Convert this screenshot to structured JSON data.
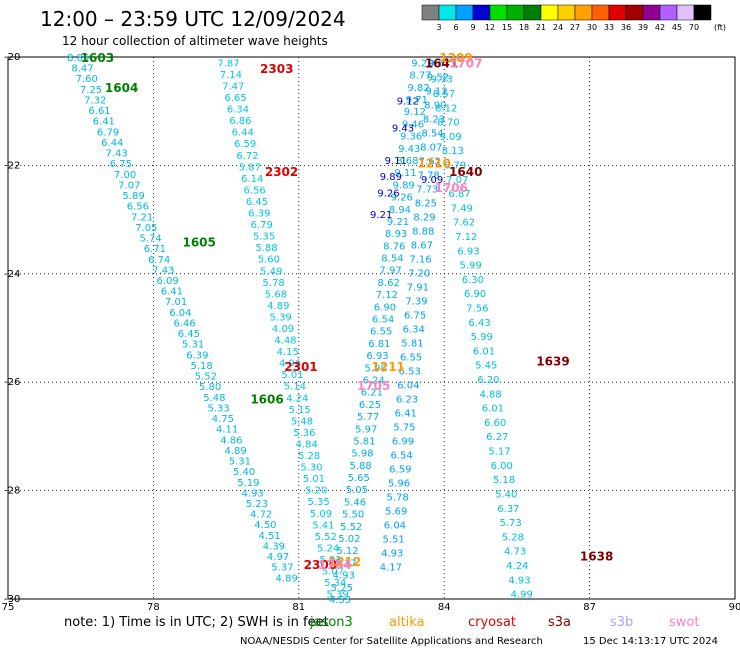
{
  "header": {
    "title": "12:00 – 23:59 UTC 12/09/2024",
    "subtitle": "12 hour collection of altimeter wave heights"
  },
  "legend": {
    "ticks": [
      "3",
      "6",
      "9",
      "12",
      "15",
      "18",
      "21",
      "24",
      "27",
      "30",
      "33",
      "36",
      "39",
      "42",
      "45",
      "70"
    ],
    "unit": "(ft)",
    "colors": [
      "#808080",
      "#00e8e8",
      "#00a0ff",
      "#0000d0",
      "#00e000",
      "#00b000",
      "#008000",
      "#ffff00",
      "#ffd000",
      "#ffa000",
      "#ff6000",
      "#e00000",
      "#a00000",
      "#900090",
      "#b060ff",
      "#e0c0ff",
      "#000000"
    ]
  },
  "footer": {
    "note": "note:  1) Time is in UTC; 2) SWH is in feet",
    "credit": "NOAA/NESDIS Center for Satellite Applications and Research",
    "timestamp": "15 Dec 14:13:17 UTC 2024",
    "satellites": [
      {
        "name": "jason3",
        "color": "#008000"
      },
      {
        "name": "altika",
        "color": "#ff9900"
      },
      {
        "name": "cryosat",
        "color": "#e00000"
      },
      {
        "name": "s3a",
        "color": "#800000"
      },
      {
        "name": "s3b",
        "color": "#b0a0ff"
      },
      {
        "name": "swot",
        "color": "#ff80c0"
      }
    ]
  },
  "chart_data": {
    "type": "scatter",
    "title": "12:00 – 23:59 UTC 12/09/2024",
    "subtitle": "12 hour collection of altimeter wave heights",
    "xlabel": "",
    "ylabel": "",
    "xlim": [
      75,
      90
    ],
    "ylim": [
      -30,
      -20
    ],
    "xticks": [
      "75",
      "78",
      "81",
      "84",
      "87",
      "90"
    ],
    "yticks": [
      "-20",
      "-22",
      "-24",
      "-26",
      "-28",
      "-30"
    ],
    "grid": true,
    "tracks": [
      {
        "x0": 76.45,
        "y0": -20.0,
        "x1": 80.75,
        "y1": -29.6,
        "color": "#00b8e8",
        "values": [
          "8.85",
          "8.47",
          "7.60",
          "7.25",
          "7.32",
          "6.61",
          "6.41",
          "6.79",
          "6.44",
          "7.43",
          "6.75",
          "7.00",
          "7.07",
          "5.89",
          "6.56",
          "7.21",
          "7.05",
          "5.74",
          "6.71",
          "6.74",
          "7.43",
          "6.09",
          "6.41",
          "7.01",
          "6.04",
          "6.46",
          "6.45",
          "5.31",
          "6.39",
          "5.18",
          "5.52",
          "5.80",
          "5.48",
          "5.33",
          "4.75",
          "4.11",
          "4.86",
          "4.89",
          "5.31",
          "5.40",
          "5.19",
          "4.93",
          "5.23",
          "4.72",
          "4.50",
          "4.51",
          "4.39",
          "4.97",
          "5.37",
          "4.89"
        ]
      },
      {
        "x0": 79.55,
        "y0": -20.1,
        "x1": 81.8,
        "y1": -29.9,
        "color": "#00c8e8",
        "values": [
          "7.87",
          "7.14",
          "7.47",
          "6.65",
          "6.34",
          "6.86",
          "6.44",
          "6.59",
          "6.72",
          "5.87",
          "6.14",
          "6.56",
          "6.45",
          "6.39",
          "6.79",
          "5.35",
          "5.88",
          "5.60",
          "5.49",
          "5.78",
          "5.68",
          "4.89",
          "5.39",
          "4.09",
          "4.48",
          "4.15",
          "4.96",
          "5.01",
          "5.14",
          "4.24",
          "5.15",
          "5.48",
          "5.36",
          "4.84",
          "5.28",
          "5.30",
          "5.01",
          "5.20",
          "5.35",
          "5.09",
          "5.41",
          "5.52",
          "5.24",
          "5.03",
          "5.07",
          "5.34",
          "5.39"
        ]
      },
      {
        "x0": 81.85,
        "y0": -30.0,
        "x1": 83.55,
        "y1": -20.1,
        "color": "#00b0e8",
        "values": [
          "4.53",
          "5.25",
          "4.93",
          "5.17",
          "5.12",
          "5.02",
          "5.52",
          "5.50",
          "5.46",
          "5.05",
          "5.65",
          "5.88",
          "5.98",
          "5.81",
          "5.97",
          "5.77",
          "6.25",
          "6.21",
          "6.24",
          "5.98",
          "6.93",
          "6.81",
          "6.55",
          "6.54",
          "6.90",
          "7.12",
          "8.62",
          "7.97",
          "8.54",
          "8.76",
          "8.93",
          "9.21",
          "8.94",
          "9.26",
          "9.89",
          "9.11",
          "8.68",
          "9.43",
          "9.36",
          "9.46",
          "9.12",
          "9.71",
          "9.82",
          "8.77",
          "9.20"
        ]
      },
      {
        "x0": 82.9,
        "y0": -29.4,
        "x1": 83.9,
        "y1": -20.1,
        "color": "#00a0ff",
        "values": [
          "4.17",
          "4.93",
          "5.51",
          "6.04",
          "5.69",
          "5.78",
          "5.96",
          "6.59",
          "6.54",
          "6.99",
          "5.75",
          "6.41",
          "6.23",
          "6.04",
          "6.53",
          "6.55",
          "5.81",
          "6.34",
          "6.75",
          "7.39",
          "7.91",
          "7.20",
          "7.16",
          "8.67",
          "8.88",
          "8.29",
          "8.25",
          "7.73",
          "7.78",
          "7.62",
          "8.07",
          "8.54",
          "8.23",
          "8.90",
          "9.12",
          "9.52",
          "9.87"
        ]
      },
      {
        "x0": 85.6,
        "y0": -29.9,
        "x1": 83.95,
        "y1": -20.4,
        "color": "#00c0e0",
        "values": [
          "4.99",
          "4.93",
          "4.24",
          "4.73",
          "5.28",
          "5.73",
          "6.37",
          "5.40",
          "5.18",
          "6.00",
          "5.17",
          "6.27",
          "6.60",
          "6.01",
          "4.88",
          "6.20",
          "5.45",
          "6.01",
          "5.99",
          "6.43",
          "7.56",
          "6.90",
          "6.30",
          "5.99",
          "6.93",
          "7.12",
          "7.62",
          "7.49",
          "6.87",
          "7.07",
          "6.79",
          "8.13",
          "9.09",
          "8.70",
          "8.12",
          "8.57",
          "9.73"
        ]
      }
    ],
    "highlighted_points": [
      {
        "x": 83.25,
        "y": -20.8,
        "label": "9.12",
        "color": "#0000d0"
      },
      {
        "x": 83.15,
        "y": -21.3,
        "label": "9.43",
        "color": "#0000d0"
      },
      {
        "x": 83.0,
        "y": -21.9,
        "label": "9.11",
        "color": "#0000d0"
      },
      {
        "x": 82.9,
        "y": -22.2,
        "label": "9.89",
        "color": "#0000d0"
      },
      {
        "x": 82.85,
        "y": -22.5,
        "label": "9.26",
        "color": "#0000d0"
      },
      {
        "x": 82.7,
        "y": -22.9,
        "label": "9.21",
        "color": "#0000d0"
      },
      {
        "x": 83.75,
        "y": -22.25,
        "label": "9.09",
        "color": "#0000d0"
      }
    ],
    "pass_labels": [
      {
        "x": 76.5,
        "y": -20.0,
        "label": "1603",
        "color": "#008000"
      },
      {
        "x": 77.0,
        "y": -20.55,
        "label": "1604",
        "color": "#008000"
      },
      {
        "x": 78.6,
        "y": -23.4,
        "label": "1605",
        "color": "#008000"
      },
      {
        "x": 80.0,
        "y": -26.3,
        "label": "1606",
        "color": "#008000"
      },
      {
        "x": 80.2,
        "y": -20.2,
        "label": "2303",
        "color": "#e00000"
      },
      {
        "x": 80.3,
        "y": -22.1,
        "label": "2302",
        "color": "#e00000"
      },
      {
        "x": 80.7,
        "y": -25.7,
        "label": "2301",
        "color": "#e00000"
      },
      {
        "x": 81.1,
        "y": -29.35,
        "label": "2300",
        "color": "#e00000"
      },
      {
        "x": 83.6,
        "y": -20.1,
        "label": "1641",
        "color": "#800000"
      },
      {
        "x": 84.1,
        "y": -22.1,
        "label": "1640",
        "color": "#800000"
      },
      {
        "x": 85.9,
        "y": -25.6,
        "label": "1639",
        "color": "#800000"
      },
      {
        "x": 86.8,
        "y": -29.2,
        "label": "1638",
        "color": "#800000"
      },
      {
        "x": 83.9,
        "y": -20.0,
        "label": "1209",
        "color": "#ff9900"
      },
      {
        "x": 83.45,
        "y": -21.95,
        "label": "1210",
        "color": "#ff9900"
      },
      {
        "x": 82.5,
        "y": -25.7,
        "label": "1211",
        "color": "#ff9900"
      },
      {
        "x": 81.6,
        "y": -29.3,
        "label": "1212",
        "color": "#ff9900"
      },
      {
        "x": 84.1,
        "y": -20.1,
        "label": "1707",
        "color": "#ff80c0"
      },
      {
        "x": 83.8,
        "y": -22.4,
        "label": "1706",
        "color": "#ff80c0"
      },
      {
        "x": 82.2,
        "y": -26.05,
        "label": "1705",
        "color": "#ff80c0"
      },
      {
        "x": 81.4,
        "y": -29.35,
        "label": "1704",
        "color": "#ff80c0"
      }
    ]
  }
}
